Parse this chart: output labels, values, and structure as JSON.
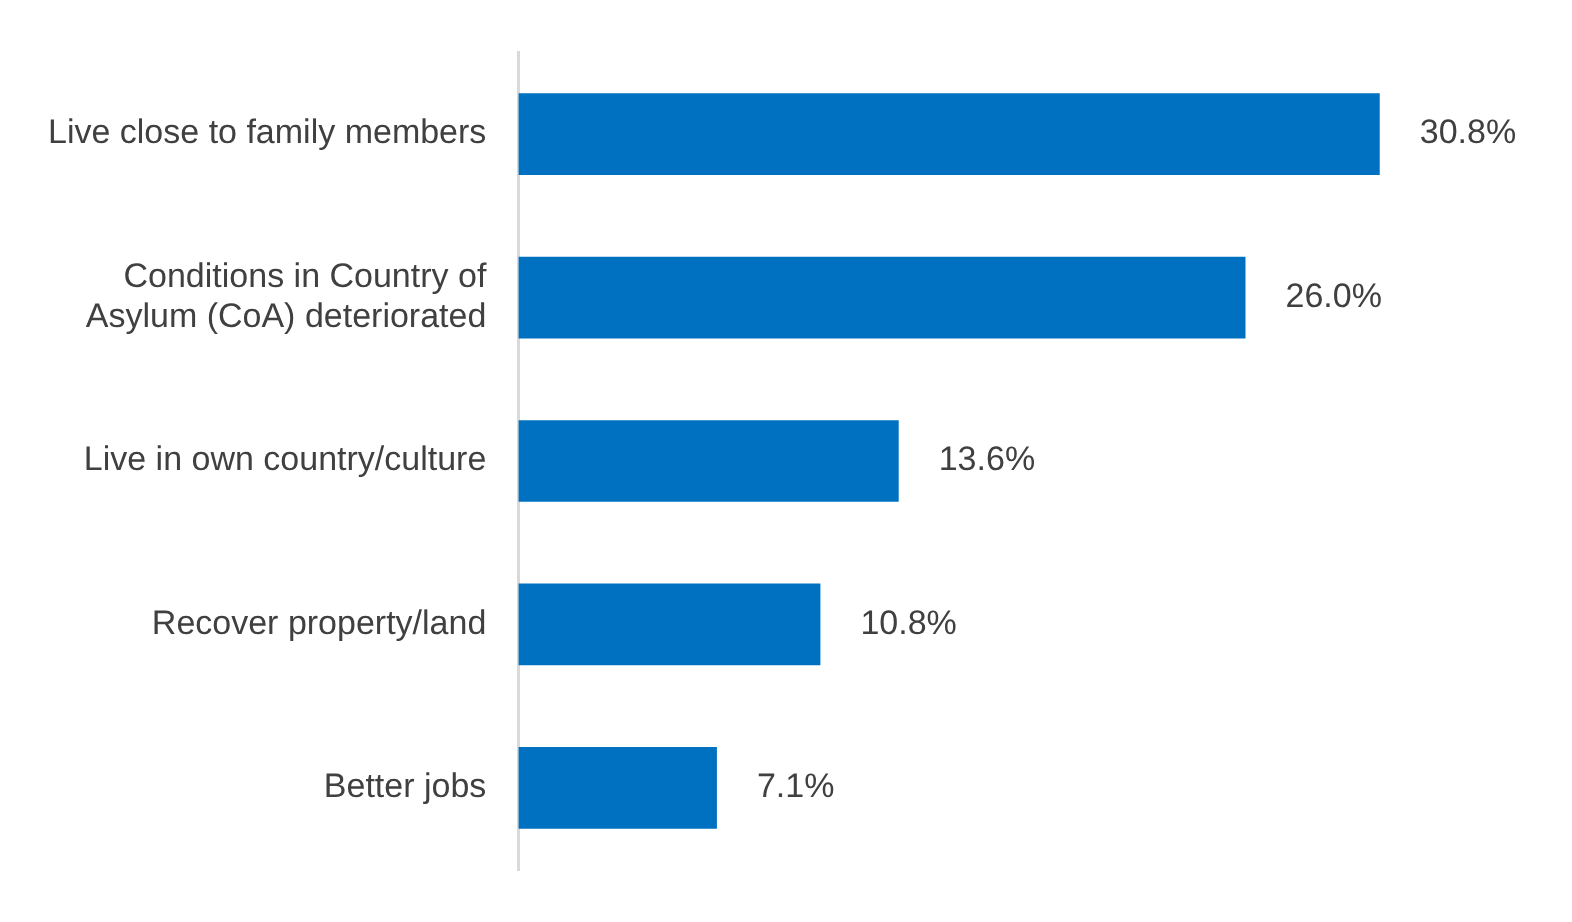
{
  "chart_data": {
    "type": "bar",
    "orientation": "horizontal",
    "categories": [
      "Live close to family members",
      "Conditions in Country of Asylum (CoA) deteriorated",
      "Live in own country/culture",
      "Recover property/land",
      "Better jobs"
    ],
    "values": [
      30.8,
      26.0,
      13.6,
      10.8,
      7.1
    ],
    "value_labels": [
      "30.8%",
      "26.0%",
      "13.6%",
      "10.8%",
      "7.1%"
    ],
    "color": "#0070c0",
    "legend": false,
    "tick_labels": "y"
  }
}
